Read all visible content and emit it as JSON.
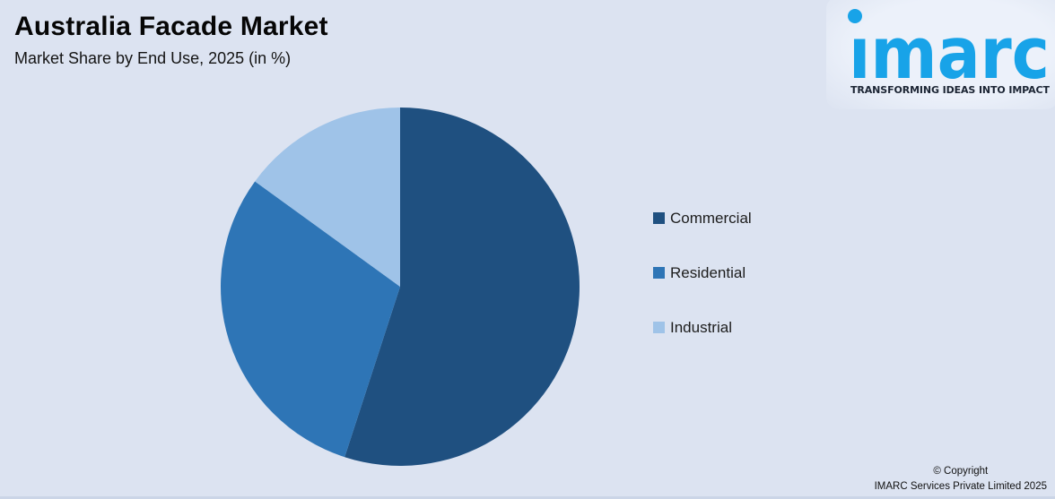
{
  "page": {
    "background_color": "#DCE3F1"
  },
  "header": {
    "title": "Australia Facade Market",
    "subtitle": "Market Share by End Use, 2025 (in %)"
  },
  "logo": {
    "wordmark": "imarc",
    "tagline": "TRANSFORMING IDEAS INTO IMPACT",
    "wordmark_color": "#18A3E8",
    "tagline_color": "#1B2433"
  },
  "chart_data": {
    "type": "pie",
    "title": "Australia Facade Market",
    "subtitle": "Market Share by End Use, 2025 (in %)",
    "unit": "%",
    "start_angle_deg": 0,
    "direction": "clockwise",
    "legend_position": "right",
    "data_labels": false,
    "segments": [
      {
        "label": "Commercial",
        "value": 55,
        "color": "#1F5080"
      },
      {
        "label": "Residential",
        "value": 30,
        "color": "#2E75B6"
      },
      {
        "label": "Industrial",
        "value": 15,
        "color": "#9FC3E8"
      }
    ]
  },
  "footer": {
    "line1": "© Copyright",
    "line2": "IMARC Services Private Limited 2025"
  }
}
